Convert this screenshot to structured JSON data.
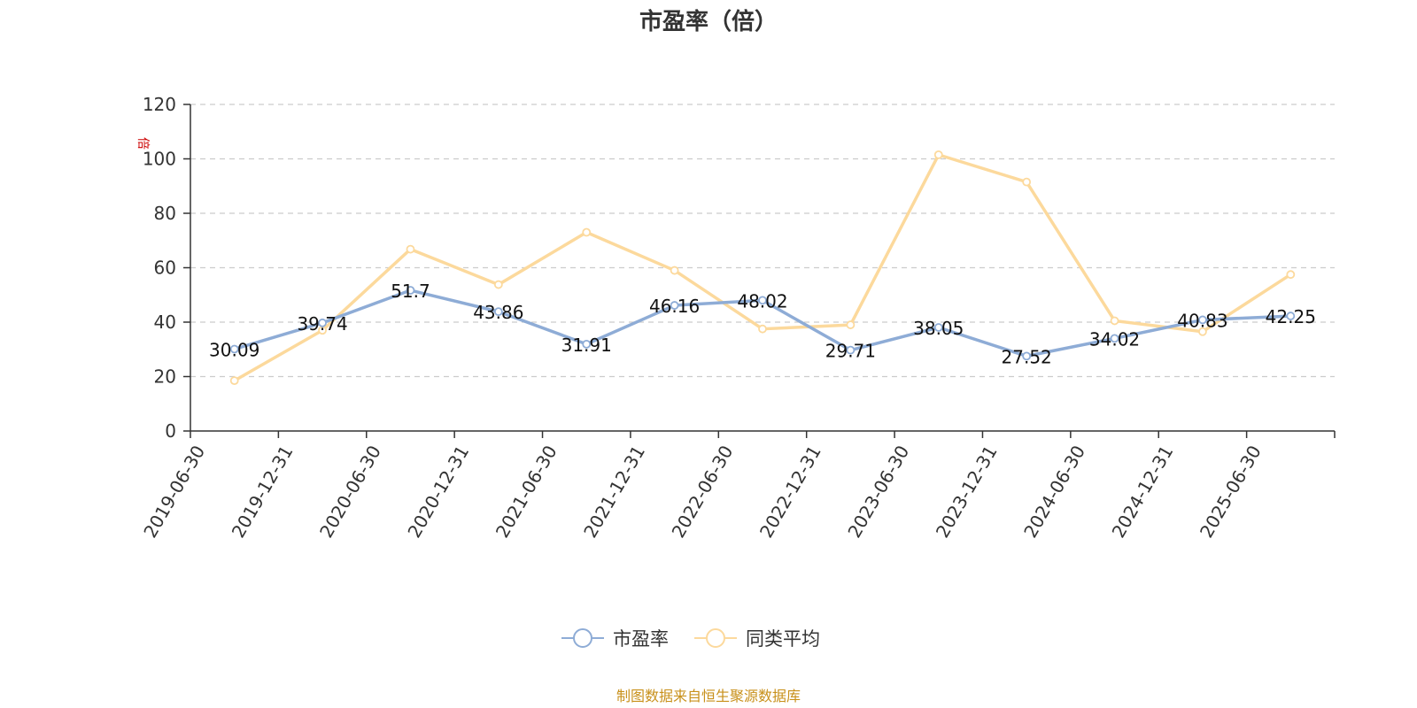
{
  "chart_data": {
    "type": "line",
    "title": "市盈率（倍）",
    "ylabel": "倍",
    "categories": [
      "2019-06-30",
      "2019-12-31",
      "2020-06-30",
      "2020-12-31",
      "2021-06-30",
      "2021-12-31",
      "2022-06-30",
      "2022-12-31",
      "2023-06-30",
      "2023-12-31",
      "2024-06-30",
      "2024-12-31",
      "2025-06-30"
    ],
    "ylim": [
      0,
      120
    ],
    "yticks": [
      0,
      20,
      40,
      60,
      80,
      100,
      120
    ],
    "grid": "dashed horizontal",
    "legend_position": "bottom-center",
    "series": [
      {
        "name": "市盈率",
        "color": "#8eacd6",
        "values": [
          30.09,
          39.74,
          51.7,
          43.86,
          31.91,
          46.16,
          48.02,
          29.71,
          38.05,
          27.52,
          34.02,
          40.83,
          42.25
        ],
        "show_labels": true
      },
      {
        "name": "同类平均",
        "color": "#fcd99c",
        "values": [
          18.5,
          37.0,
          66.8,
          53.8,
          73.0,
          59.0,
          37.5,
          39.0,
          101.5,
          91.5,
          40.5,
          36.5,
          57.5
        ],
        "show_labels": false
      }
    ]
  },
  "source": "制图数据来自恒生聚源数据库"
}
